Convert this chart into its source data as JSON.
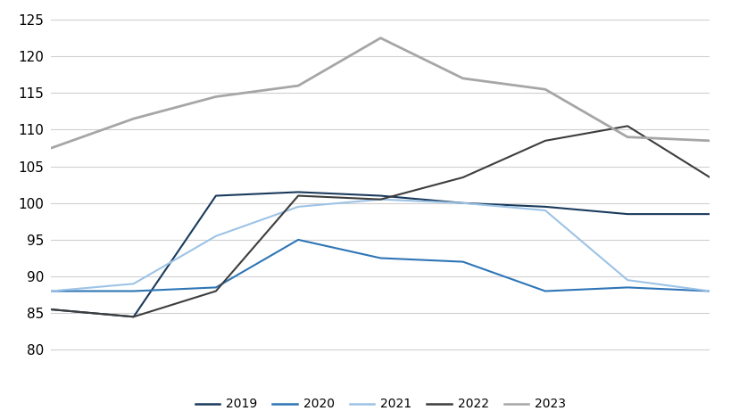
{
  "x_points": [
    1,
    2,
    3,
    4,
    5,
    6,
    7,
    8,
    9
  ],
  "series": {
    "2019": {
      "values": [
        85.5,
        84.5,
        101.0,
        101.5,
        101.0,
        100.0,
        99.5,
        98.5,
        98.5
      ],
      "color": "#1a3a5c",
      "linewidth": 1.5
    },
    "2020": {
      "values": [
        88.0,
        88.0,
        88.5,
        95.0,
        92.5,
        92.0,
        88.0,
        88.5,
        88.0
      ],
      "color": "#2e75b6",
      "linewidth": 1.5
    },
    "2021": {
      "values": [
        88.0,
        89.0,
        95.5,
        99.5,
        100.5,
        100.0,
        99.0,
        89.5,
        88.0
      ],
      "color": "#9dc3e6",
      "linewidth": 1.5
    },
    "2022": {
      "values": [
        85.5,
        84.5,
        88.0,
        101.0,
        100.5,
        103.5,
        108.5,
        110.5,
        103.5
      ],
      "color": "#3d3d3d",
      "linewidth": 1.5
    },
    "2023": {
      "values": [
        107.5,
        111.5,
        114.5,
        116.0,
        122.5,
        117.0,
        115.5,
        109.0,
        108.5
      ],
      "color": "#a6a6a6",
      "linewidth": 2.0
    }
  },
  "ylim": [
    79.5,
    126
  ],
  "yticks": [
    80,
    85,
    90,
    95,
    100,
    105,
    110,
    115,
    120,
    125
  ],
  "legend_order": [
    "2019",
    "2020",
    "2021",
    "2022",
    "2023"
  ],
  "background_color": "#ffffff",
  "grid_color": "#d0d0d0",
  "tick_fontsize": 11,
  "legend_fontsize": 10
}
